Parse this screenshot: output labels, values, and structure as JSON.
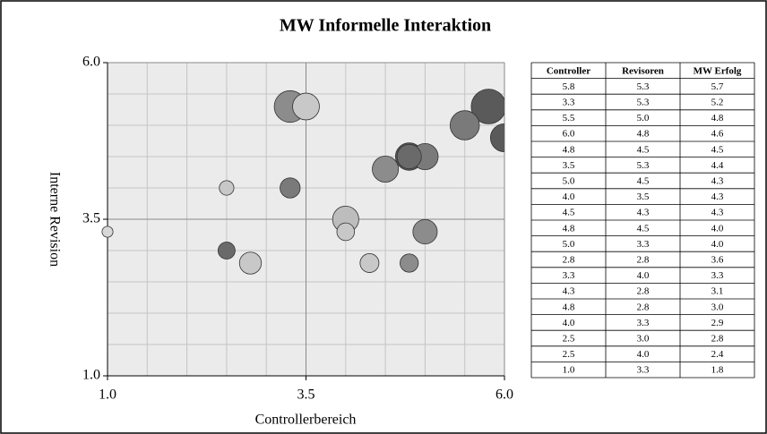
{
  "chart_data": {
    "type": "bubble",
    "title": "MW Informelle Interaktion",
    "x_label": "Controllerbereich",
    "y_label": "Interne Revision",
    "xlim": [
      1,
      6
    ],
    "ylim": [
      1,
      6
    ],
    "xticks": [
      {
        "value": 1,
        "label": "1.0"
      },
      {
        "value": 3.5,
        "label": "3.5"
      },
      {
        "value": 6,
        "label": "6.0"
      }
    ],
    "yticks": [
      {
        "value": 1,
        "label": "1.0"
      },
      {
        "value": 3.5,
        "label": "3.5"
      },
      {
        "value": 6,
        "label": "6.0"
      }
    ],
    "grid": true,
    "x": [
      5.8,
      3.3,
      5.5,
      6.0,
      4.8,
      3.5,
      5.0,
      4.0,
      4.5,
      4.8,
      5.0,
      2.8,
      3.3,
      4.3,
      4.8,
      4.0,
      2.5,
      2.5,
      1.0
    ],
    "values": [
      5.3,
      5.3,
      5.0,
      4.8,
      4.5,
      5.3,
      4.5,
      3.5,
      4.3,
      4.5,
      3.3,
      2.8,
      4.0,
      2.8,
      2.8,
      3.3,
      3.0,
      4.0,
      3.3
    ],
    "sizes": [
      5.7,
      5.2,
      4.8,
      4.6,
      4.5,
      4.4,
      4.3,
      4.3,
      4.3,
      4.0,
      4.0,
      3.6,
      3.3,
      3.1,
      3.0,
      2.9,
      2.8,
      2.4,
      1.8
    ],
    "colors": [
      "#5a5a5a",
      "#8c8c8c",
      "#7a7a7a",
      "#5a5a5a",
      "#5a5a5a",
      "#c8c8c8",
      "#7a7a7a",
      "#bdbdbd",
      "#8c8c8c",
      "#6a6a6a",
      "#8c8c8c",
      "#c8c8c8",
      "#7a7a7a",
      "#c8c8c8",
      "#8c8c8c",
      "#c8c8c8",
      "#6a6a6a",
      "#c8c8c8",
      "#d8d8d8"
    ]
  },
  "table": {
    "columns": [
      "Controller",
      "Revisoren",
      "MW Erfolg"
    ],
    "rows": [
      [
        "5.8",
        "5.3",
        "5.7"
      ],
      [
        "3.3",
        "5.3",
        "5.2"
      ],
      [
        "5.5",
        "5.0",
        "4.8"
      ],
      [
        "6.0",
        "4.8",
        "4.6"
      ],
      [
        "4.8",
        "4.5",
        "4.5"
      ],
      [
        "3.5",
        "5.3",
        "4.4"
      ],
      [
        "5.0",
        "4.5",
        "4.3"
      ],
      [
        "4.0",
        "3.5",
        "4.3"
      ],
      [
        "4.5",
        "4.3",
        "4.3"
      ],
      [
        "4.8",
        "4.5",
        "4.0"
      ],
      [
        "5.0",
        "3.3",
        "4.0"
      ],
      [
        "2.8",
        "2.8",
        "3.6"
      ],
      [
        "3.3",
        "4.0",
        "3.3"
      ],
      [
        "4.3",
        "2.8",
        "3.1"
      ],
      [
        "4.8",
        "2.8",
        "3.0"
      ],
      [
        "4.0",
        "3.3",
        "2.9"
      ],
      [
        "2.5",
        "3.0",
        "2.8"
      ],
      [
        "2.5",
        "4.0",
        "2.4"
      ],
      [
        "1.0",
        "3.3",
        "1.8"
      ]
    ]
  }
}
